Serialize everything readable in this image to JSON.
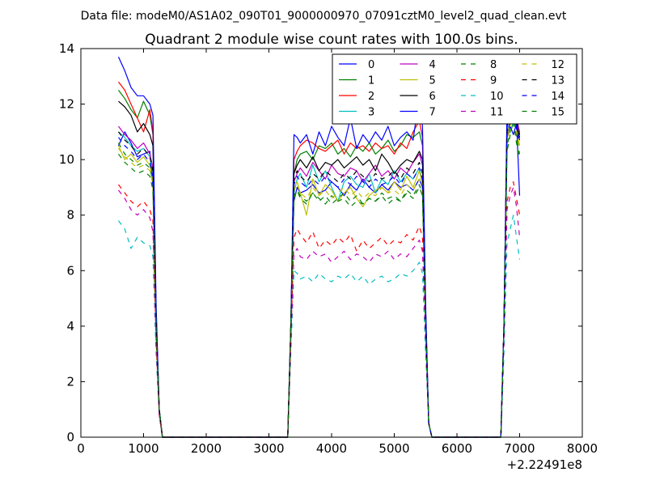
{
  "figure": {
    "suptitle": "Data file: modeM0/AS1A02_090T01_9000000970_07091cztM0_level2_quad_clean.evt",
    "title": "Quadrant 2 module wise count rates with 100.0s bins.",
    "x_offset_label": "+2.22491e8"
  },
  "chart_data": {
    "type": "line",
    "title": "Quadrant 2 module wise count rates with 100.0s bins.",
    "xlabel": "",
    "ylabel": "",
    "xlim": [
      0,
      8000
    ],
    "ylim": [
      0,
      14
    ],
    "x_ticks": [
      0,
      1000,
      2000,
      3000,
      4000,
      5000,
      6000,
      7000,
      8000
    ],
    "y_ticks": [
      0,
      2,
      4,
      6,
      8,
      10,
      12,
      14
    ],
    "x_offset": "+2.22491e8",
    "grid": false,
    "legend_position": "top-right",
    "legend_columns": 4,
    "x": [
      600,
      700,
      800,
      900,
      1000,
      1100,
      1150,
      1200,
      1250,
      1300,
      1350,
      3300,
      3350,
      3400,
      3450,
      3500,
      3600,
      3700,
      3800,
      3900,
      4000,
      4100,
      4200,
      4300,
      4400,
      4500,
      4600,
      4700,
      4800,
      4900,
      5000,
      5100,
      5200,
      5300,
      5400,
      5450,
      5500,
      5550,
      5600,
      5650,
      6700,
      6750,
      6800,
      6850,
      6900,
      6950,
      7000
    ],
    "series": [
      {
        "name": "0",
        "color": "#0000ff",
        "dash": "solid",
        "values": [
          10.5,
          11.0,
          10.6,
          10.1,
          10.2,
          10.3,
          9.0,
          4.0,
          1.0,
          0,
          0,
          0,
          4.0,
          8.5,
          9.0,
          8.8,
          8.9,
          9.1,
          8.8,
          8.9,
          9.2,
          9.0,
          8.7,
          9.1,
          8.9,
          9.3,
          9.0,
          8.8,
          9.1,
          8.9,
          9.2,
          9.0,
          9.1,
          8.9,
          9.3,
          9.0,
          4.0,
          0.5,
          0,
          0,
          0,
          4.0,
          10.8,
          11.2,
          10.9,
          11.3,
          10.7
        ]
      },
      {
        "name": "1",
        "color": "#008000",
        "dash": "solid",
        "values": [
          12.5,
          12.2,
          11.8,
          11.5,
          12.1,
          11.6,
          10.9,
          4.5,
          1.0,
          0,
          0,
          0,
          4.0,
          9.5,
          10.0,
          10.2,
          10.3,
          10.0,
          10.5,
          10.4,
          10.6,
          10.2,
          10.4,
          10.1,
          10.5,
          10.3,
          10.6,
          10.2,
          10.4,
          10.7,
          10.3,
          10.5,
          10.9,
          10.8,
          11.0,
          10.5,
          4.5,
          0.5,
          0,
          0,
          0,
          4.0,
          11.5,
          12.2,
          13.1,
          12.0,
          11.8
        ]
      },
      {
        "name": "2",
        "color": "#ff0000",
        "dash": "solid",
        "values": [
          12.8,
          12.5,
          12.0,
          11.5,
          11.0,
          11.8,
          11.0,
          4.5,
          1.0,
          0,
          0,
          0,
          4.0,
          10.0,
          10.3,
          10.5,
          10.7,
          10.6,
          10.4,
          10.3,
          10.5,
          10.7,
          10.2,
          10.6,
          10.4,
          10.5,
          10.3,
          10.6,
          10.4,
          10.5,
          10.2,
          10.6,
          10.4,
          11.0,
          11.4,
          10.8,
          4.5,
          0.5,
          0,
          0,
          0,
          4.0,
          11.5,
          12.0,
          12.5,
          11.8,
          11.3
        ]
      },
      {
        "name": "3",
        "color": "#00bfbf",
        "dash": "solid",
        "values": [
          11.0,
          10.8,
          10.5,
          10.3,
          10.4,
          10.1,
          9.5,
          4.0,
          1.0,
          0,
          0,
          0,
          4.0,
          8.8,
          9.3,
          9.5,
          9.0,
          9.8,
          9.2,
          9.6,
          9.0,
          8.5,
          9.2,
          9.4,
          9.1,
          9.0,
          9.5,
          8.8,
          9.3,
          9.1,
          9.6,
          9.2,
          9.5,
          9.3,
          9.7,
          9.2,
          4.0,
          0.5,
          0,
          0,
          0,
          4.0,
          11.0,
          11.4,
          11.2,
          11.6,
          10.9
        ]
      },
      {
        "name": "4",
        "color": "#bf00bf",
        "dash": "solid",
        "values": [
          11.2,
          10.9,
          10.7,
          10.4,
          10.6,
          10.2,
          9.7,
          4.2,
          1.0,
          0,
          0,
          0,
          4.0,
          9.2,
          9.5,
          9.7,
          9.4,
          9.9,
          9.6,
          9.3,
          9.8,
          9.5,
          9.4,
          9.7,
          9.6,
          9.2,
          9.5,
          9.8,
          9.4,
          9.6,
          9.3,
          9.7,
          9.5,
          9.9,
          10.2,
          9.8,
          4.2,
          0.5,
          0,
          0,
          0,
          4.0,
          11.2,
          11.8,
          12.2,
          11.5,
          11.0
        ]
      },
      {
        "name": "5",
        "color": "#bfbf00",
        "dash": "solid",
        "values": [
          10.5,
          10.0,
          10.2,
          9.9,
          10.1,
          9.8,
          9.2,
          4.0,
          1.0,
          0,
          0,
          0,
          4.0,
          9.0,
          9.2,
          8.8,
          8.0,
          9.3,
          8.7,
          9.1,
          8.9,
          8.5,
          8.8,
          9.0,
          8.6,
          8.3,
          8.7,
          8.9,
          9.0,
          8.8,
          9.2,
          8.9,
          9.4,
          9.0,
          9.6,
          9.1,
          4.0,
          0.5,
          0,
          0,
          0,
          4.0,
          10.8,
          11.5,
          12.5,
          11.2,
          10.5
        ]
      },
      {
        "name": "6",
        "color": "#000000",
        "dash": "solid",
        "values": [
          12.1,
          11.9,
          11.6,
          11.0,
          11.3,
          10.9,
          10.5,
          4.3,
          1.0,
          0,
          0,
          0,
          4.0,
          9.5,
          9.8,
          10.0,
          9.7,
          10.1,
          9.6,
          9.9,
          9.8,
          10.0,
          9.7,
          9.9,
          10.1,
          9.8,
          10.0,
          9.6,
          10.2,
          9.9,
          9.5,
          9.8,
          10.0,
          9.9,
          10.3,
          10.0,
          4.3,
          0.5,
          0,
          0,
          0,
          4.0,
          11.2,
          11.6,
          12.0,
          11.3,
          10.8
        ]
      },
      {
        "name": "7",
        "color": "#0000ff",
        "dash": "solid",
        "values": [
          13.7,
          13.2,
          12.6,
          12.3,
          12.3,
          12.0,
          11.6,
          4.8,
          1.0,
          0,
          0,
          0,
          4.0,
          10.9,
          10.8,
          10.6,
          10.9,
          10.2,
          11.0,
          10.5,
          11.2,
          10.8,
          10.5,
          11.5,
          10.4,
          10.9,
          10.6,
          11.0,
          10.7,
          11.2,
          10.5,
          10.8,
          11.0,
          10.7,
          12.3,
          11.2,
          4.8,
          0.5,
          0,
          0,
          0,
          4.0,
          12.0,
          12.5,
          12.9,
          11.4,
          8.7
        ]
      },
      {
        "name": "8",
        "color": "#008000",
        "dash": "dashed",
        "values": [
          10.6,
          10.2,
          10.0,
          9.8,
          9.9,
          9.7,
          9.2,
          4.0,
          1.0,
          0,
          0,
          0,
          4.0,
          8.6,
          8.9,
          8.7,
          8.5,
          8.8,
          8.6,
          8.4,
          8.7,
          8.5,
          8.6,
          8.3,
          8.5,
          8.4,
          8.6,
          8.5,
          8.7,
          8.4,
          8.6,
          8.5,
          8.8,
          8.6,
          9.0,
          8.7,
          4.0,
          0.5,
          0,
          0,
          0,
          4.0,
          10.5,
          11.0,
          11.5,
          10.8,
          10.2
        ]
      },
      {
        "name": "9",
        "color": "#ff0000",
        "dash": "dashed",
        "values": [
          9.1,
          8.8,
          8.5,
          8.3,
          8.5,
          8.2,
          7.8,
          3.5,
          0.8,
          0,
          0,
          0,
          3.5,
          7.2,
          7.5,
          7.3,
          7.0,
          7.4,
          6.8,
          7.1,
          6.9,
          7.2,
          7.0,
          7.3,
          6.7,
          7.1,
          6.8,
          7.0,
          7.2,
          6.9,
          7.1,
          7.0,
          7.3,
          7.1,
          7.6,
          7.2,
          3.5,
          0.5,
          0,
          0,
          0,
          3.5,
          8.5,
          9.0,
          9.2,
          8.6,
          8.0
        ]
      },
      {
        "name": "10",
        "color": "#00bfbf",
        "dash": "dashed",
        "values": [
          7.8,
          7.5,
          6.8,
          7.2,
          7.0,
          6.9,
          6.5,
          3.0,
          0.8,
          0,
          0,
          0,
          3.0,
          6.0,
          5.9,
          5.7,
          5.8,
          5.6,
          5.9,
          5.7,
          5.6,
          5.8,
          5.7,
          5.9,
          5.6,
          5.8,
          5.5,
          5.7,
          5.8,
          5.6,
          5.7,
          5.9,
          5.8,
          6.0,
          6.3,
          5.9,
          3.0,
          0.5,
          0,
          0,
          0,
          3.0,
          7.0,
          7.5,
          8.0,
          7.2,
          6.4
        ]
      },
      {
        "name": "11",
        "color": "#bf00bf",
        "dash": "dashed",
        "values": [
          8.9,
          8.6,
          8.2,
          8.0,
          8.2,
          7.9,
          7.4,
          3.4,
          0.8,
          0,
          0,
          0,
          3.4,
          6.6,
          6.8,
          6.5,
          6.4,
          6.7,
          6.5,
          6.6,
          6.3,
          6.5,
          6.7,
          6.4,
          6.6,
          6.5,
          6.3,
          6.6,
          6.5,
          6.7,
          6.4,
          6.6,
          6.5,
          6.8,
          7.1,
          6.7,
          3.4,
          0.5,
          0,
          0,
          0,
          3.4,
          8.2,
          8.7,
          9.0,
          8.3,
          7.2
        ]
      },
      {
        "name": "12",
        "color": "#bfbf00",
        "dash": "dashed",
        "values": [
          10.4,
          10.1,
          9.9,
          9.7,
          9.8,
          9.6,
          9.1,
          4.0,
          1.0,
          0,
          0,
          0,
          4.0,
          8.9,
          9.1,
          8.8,
          8.6,
          9.0,
          8.7,
          8.9,
          8.6,
          8.8,
          9.0,
          8.7,
          8.9,
          8.6,
          8.8,
          8.7,
          9.0,
          8.8,
          8.9,
          8.7,
          9.1,
          8.9,
          9.3,
          8.9,
          4.0,
          0.5,
          0,
          0,
          0,
          4.0,
          10.6,
          11.2,
          11.8,
          11.0,
          10.4
        ]
      },
      {
        "name": "13",
        "color": "#000000",
        "dash": "dashed",
        "values": [
          11.0,
          10.7,
          10.5,
          10.2,
          10.4,
          10.1,
          9.6,
          4.2,
          1.0,
          0,
          0,
          0,
          4.0,
          9.3,
          9.6,
          9.4,
          9.2,
          9.5,
          9.3,
          9.6,
          9.4,
          9.2,
          9.5,
          9.3,
          9.6,
          9.4,
          9.2,
          9.5,
          9.3,
          9.4,
          9.6,
          9.3,
          9.7,
          9.5,
          9.9,
          9.5,
          4.2,
          0.5,
          0,
          0,
          0,
          4.0,
          11.0,
          11.5,
          12.0,
          11.4,
          10.9
        ]
      },
      {
        "name": "14",
        "color": "#0000ff",
        "dash": "dashed",
        "values": [
          10.8,
          10.5,
          10.3,
          10.0,
          10.2,
          9.9,
          9.4,
          4.1,
          1.0,
          0,
          0,
          0,
          4.0,
          9.1,
          9.4,
          9.2,
          9.0,
          9.3,
          9.1,
          9.4,
          9.2,
          9.0,
          9.3,
          9.1,
          9.4,
          9.2,
          9.0,
          9.3,
          9.1,
          9.2,
          9.4,
          9.1,
          9.5,
          9.3,
          9.7,
          9.3,
          4.1,
          0.5,
          0,
          0,
          0,
          4.0,
          10.9,
          11.4,
          11.9,
          11.1,
          10.6
        ]
      },
      {
        "name": "15",
        "color": "#008000",
        "dash": "dashed",
        "values": [
          10.2,
          9.9,
          9.7,
          9.5,
          9.6,
          9.4,
          8.9,
          3.9,
          1.0,
          0,
          0,
          0,
          3.9,
          8.7,
          8.9,
          8.6,
          8.4,
          8.8,
          8.5,
          8.7,
          8.4,
          8.6,
          8.8,
          8.5,
          8.7,
          8.4,
          8.6,
          8.5,
          8.8,
          8.6,
          8.7,
          8.5,
          8.9,
          8.7,
          9.1,
          8.7,
          3.9,
          0.5,
          0,
          0,
          0,
          3.9,
          10.3,
          10.9,
          11.4,
          10.6,
          10.0
        ]
      }
    ]
  }
}
